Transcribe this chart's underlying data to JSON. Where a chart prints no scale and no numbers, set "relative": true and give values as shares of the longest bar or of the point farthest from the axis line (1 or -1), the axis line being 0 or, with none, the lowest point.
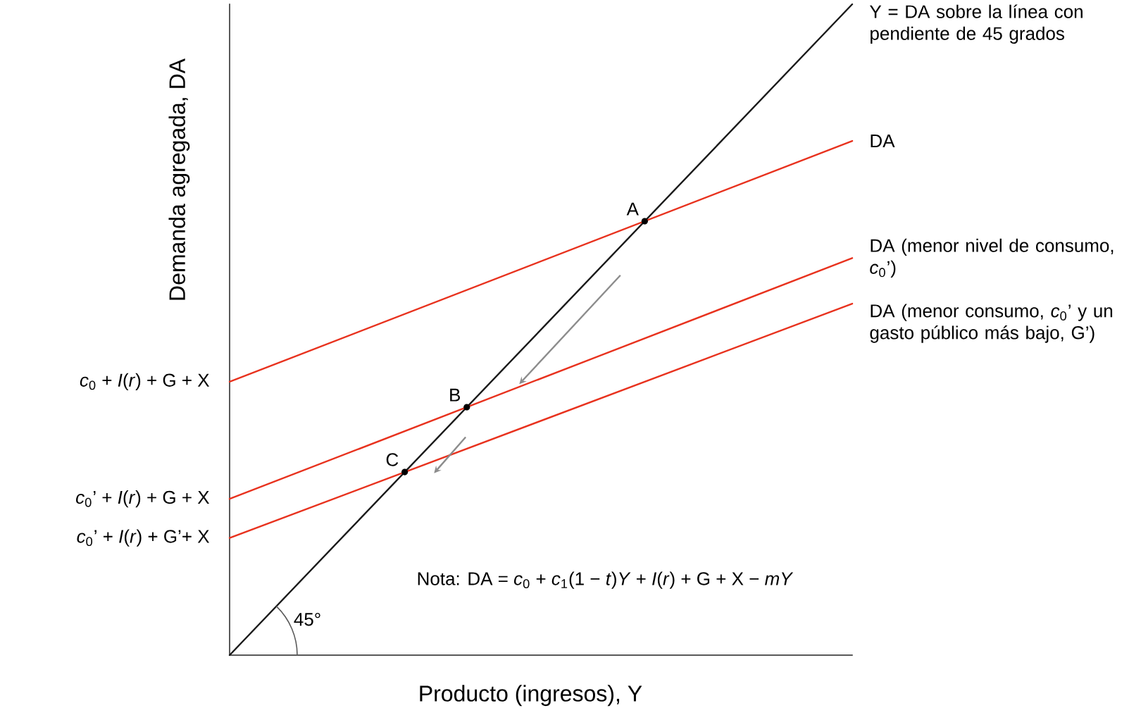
{
  "chart_data": {
    "type": "line",
    "relative": true,
    "categories": [
      null,
      null
    ],
    "xlabel": "Producto (ingresos), Y",
    "ylabel": "Demanda agregada, DA",
    "marker": "none",
    "line_style": "solid",
    "legend": false,
    "series": [
      {
        "name": "Y = DA sobre la línea con pendiente de 45 grados",
        "color": "#1a1a1a",
        "values": [
          0,
          1
        ]
      },
      {
        "name": "DA",
        "color": "#e8321e",
        "values": [
          0.42,
          0.79
        ]
      },
      {
        "name": "DA (menor nivel de consumo, *c*$_{0}$’)",
        "color": "#e8321e",
        "values": [
          0.24,
          0.61
        ]
      },
      {
        "name": "DA (menor consumo, *c*$_{0}$’ y un gasto público más bajo, G’)",
        "color": "#e8321e",
        "values": [
          0.18,
          0.54
        ]
      }
    ],
    "annotations": [
      "*c*$_{0}$ + *I*(*r*) + G + X",
      "*c*$_{0}$’ + *I*(*r*) + G + X",
      "*c*$_{0}$’ + *I*(*r*) + G’+ X",
      "A",
      "B",
      "C",
      "Nota: DA = *c*$_{0}$ + *c*$_{1}$(1 − *t*)*Y* + *I*(*r*) + G + X − *mY*",
      "45°"
    ]
  }
}
